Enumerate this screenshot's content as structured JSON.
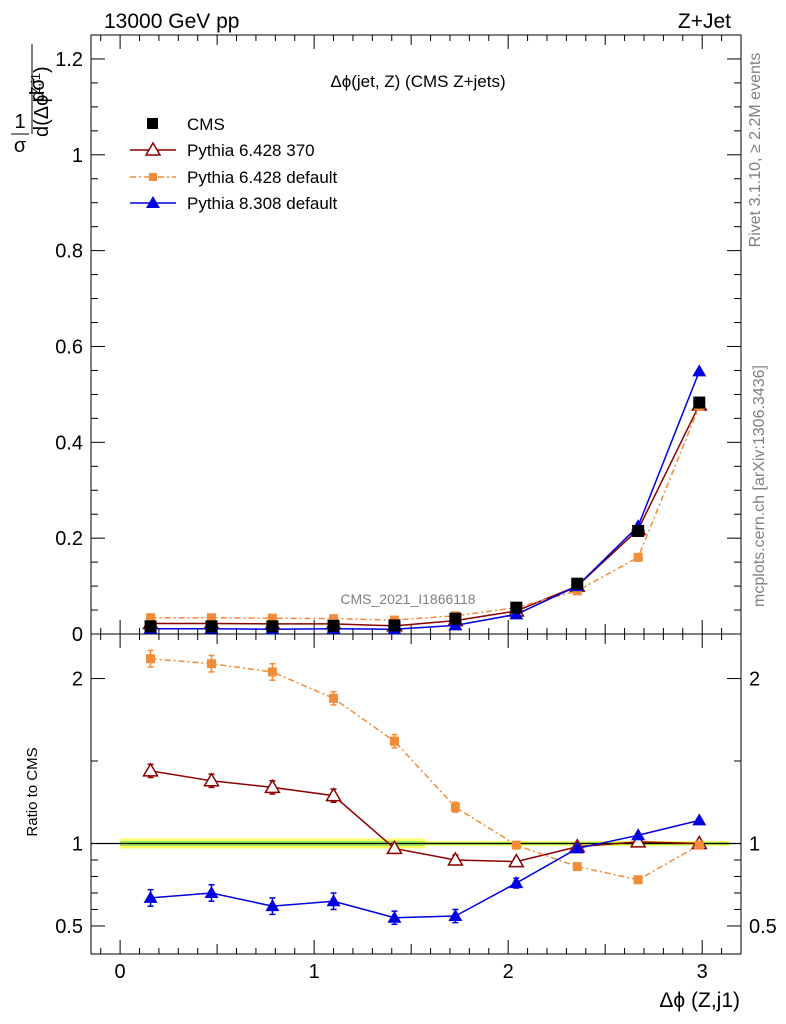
{
  "header": {
    "energy_label": "13000 GeV pp",
    "process_label": "Z+Jet"
  },
  "side_labels": {
    "rivet": "Rivet 3.1.10, ≥ 2.2M events",
    "mcplots": "mcplots.cern.ch [arXiv:1306.3436]"
  },
  "watermark": "CMS_2021_I1866118",
  "colors": {
    "cms": "#000000",
    "py6_370": "#8b0000",
    "py6_default": "#f28c38",
    "py8_default": "#0000e0",
    "band_yellow": "#ffff66",
    "band_green": "#99ee55"
  },
  "chart_data": [
    {
      "type": "line",
      "panel": "main",
      "title": "Δϕ(jet, Z) (CMS Z+jets)",
      "ylabel": "1/σ dσ/d(Δϕ^{Z,j1})",
      "xlabel": "",
      "xlim": [
        -0.15,
        3.2
      ],
      "ylim": [
        0,
        1.25
      ],
      "yticks": [
        0,
        0.2,
        0.4,
        0.6,
        0.8,
        1,
        1.2
      ],
      "ytick_labels": [
        "0",
        "0.2",
        "0.4",
        "0.6",
        "0.8",
        "1",
        "1.2"
      ],
      "legend_position": "top-left",
      "x": [
        0.157,
        0.471,
        0.785,
        1.1,
        1.414,
        1.728,
        2.042,
        2.356,
        2.67,
        2.985
      ],
      "series": [
        {
          "name": "CMS",
          "marker": "filled-square",
          "values": [
            0.016,
            0.016,
            0.016,
            0.017,
            0.018,
            0.032,
            0.055,
            0.105,
            0.215,
            0.483
          ]
        },
        {
          "name": "Pythia 6.428 370",
          "marker": "open-triangle",
          "values": [
            0.022,
            0.022,
            0.021,
            0.021,
            0.017,
            0.028,
            0.048,
            0.1,
            0.218,
            0.478
          ]
        },
        {
          "name": "Pythia 6.428 default",
          "marker": "small-square",
          "values": [
            0.034,
            0.034,
            0.033,
            0.032,
            0.029,
            0.038,
            0.055,
            0.09,
            0.16,
            0.475
          ]
        },
        {
          "name": "Pythia 8.308 default",
          "marker": "filled-triangle",
          "values": [
            0.011,
            0.011,
            0.01,
            0.011,
            0.01,
            0.018,
            0.041,
            0.1,
            0.225,
            0.548
          ]
        }
      ]
    },
    {
      "type": "line",
      "panel": "ratio",
      "ylabel": "Ratio to CMS",
      "xlabel": "Δϕ (Z,j1)",
      "xlim": [
        -0.15,
        3.2
      ],
      "ylim": [
        0.33,
        2.27
      ],
      "yticks": [
        0.5,
        1,
        2
      ],
      "ytick_labels": [
        "0.5",
        "1",
        "2"
      ],
      "xticks": [
        0,
        1,
        2,
        3
      ],
      "xtick_labels": [
        "0",
        "1",
        "2",
        "3"
      ],
      "x": [
        0.157,
        0.471,
        0.785,
        1.1,
        1.414,
        1.728,
        2.042,
        2.356,
        2.67,
        2.985
      ],
      "series": [
        {
          "name": "Pythia 6.428 370",
          "values": [
            1.44,
            1.38,
            1.34,
            1.29,
            0.97,
            0.9,
            0.89,
            0.98,
            1.01,
            1.0
          ],
          "errors": [
            0.04,
            0.04,
            0.04,
            0.04,
            0.03,
            0.03,
            0.02,
            0.015,
            0.01,
            0.01
          ]
        },
        {
          "name": "Pythia 6.428 default",
          "values": [
            2.12,
            2.09,
            2.04,
            1.88,
            1.62,
            1.22,
            0.99,
            0.86,
            0.78,
            0.99
          ],
          "errors": [
            0.05,
            0.05,
            0.05,
            0.04,
            0.04,
            0.03,
            0.02,
            0.015,
            0.01,
            0.01
          ]
        },
        {
          "name": "Pythia 8.308 default",
          "values": [
            0.67,
            0.7,
            0.62,
            0.65,
            0.55,
            0.56,
            0.76,
            0.97,
            1.05,
            1.14
          ],
          "errors": [
            0.05,
            0.05,
            0.05,
            0.05,
            0.04,
            0.04,
            0.03,
            0.015,
            0.01,
            0.01
          ]
        }
      ]
    }
  ]
}
